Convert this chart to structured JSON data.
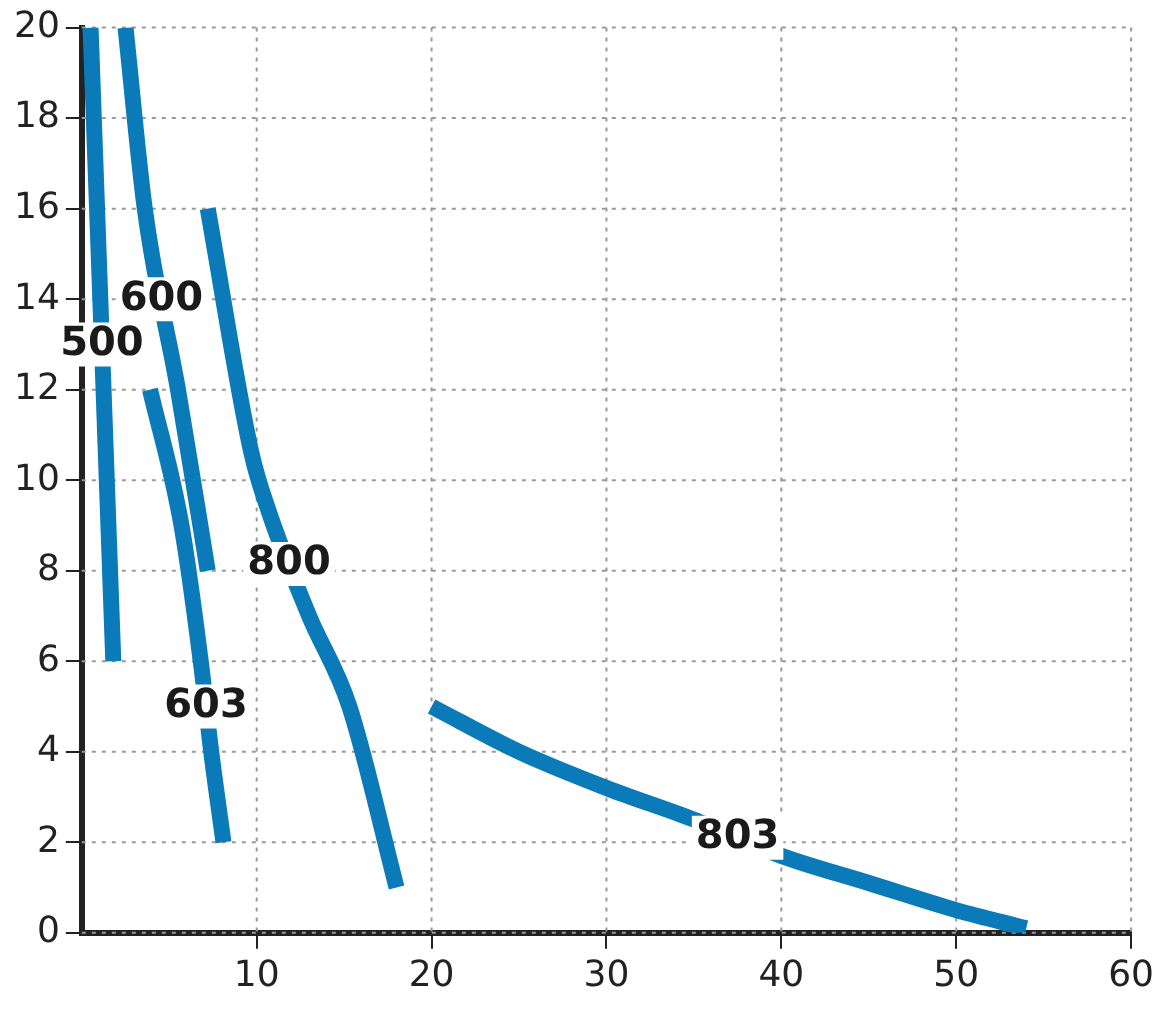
{
  "chart_data": {
    "type": "line",
    "xlim": [
      0,
      60
    ],
    "xticks": [
      10,
      20,
      30,
      40,
      50,
      60
    ],
    "ylim": [
      0,
      20
    ],
    "yticks": [
      0,
      2,
      4,
      6,
      8,
      10,
      12,
      14,
      16,
      18,
      20
    ],
    "grid": true,
    "legend": false,
    "marker": "none",
    "line_style": "solid",
    "series": [
      {
        "name": "500",
        "color": "#0a7ab8",
        "x": [
          0.5,
          1.8
        ],
        "values": [
          20,
          6
        ]
      },
      {
        "name": "600",
        "color": "#0a7ab8",
        "x": [
          2.5,
          3.6,
          5.5,
          7.2
        ],
        "values": [
          20,
          16,
          12,
          8
        ]
      },
      {
        "name": "603",
        "color": "#0a7ab8",
        "x": [
          3.9,
          5.7,
          6.8,
          7.4,
          8.1
        ],
        "values": [
          12,
          9,
          6,
          4,
          2
        ]
      },
      {
        "name": "800",
        "color": "#0a7ab8",
        "x": [
          7.2,
          9.7,
          10.7,
          13,
          15.3,
          18
        ],
        "values": [
          16,
          10.6,
          9.3,
          7,
          5,
          1
        ]
      },
      {
        "name": "803",
        "color": "#0a7ab8",
        "x": [
          20,
          25,
          30,
          35,
          40,
          45,
          50,
          54
        ],
        "values": [
          5,
          4,
          3.2,
          2.5,
          1.7,
          1.1,
          0.5,
          0.1
        ]
      }
    ]
  }
}
